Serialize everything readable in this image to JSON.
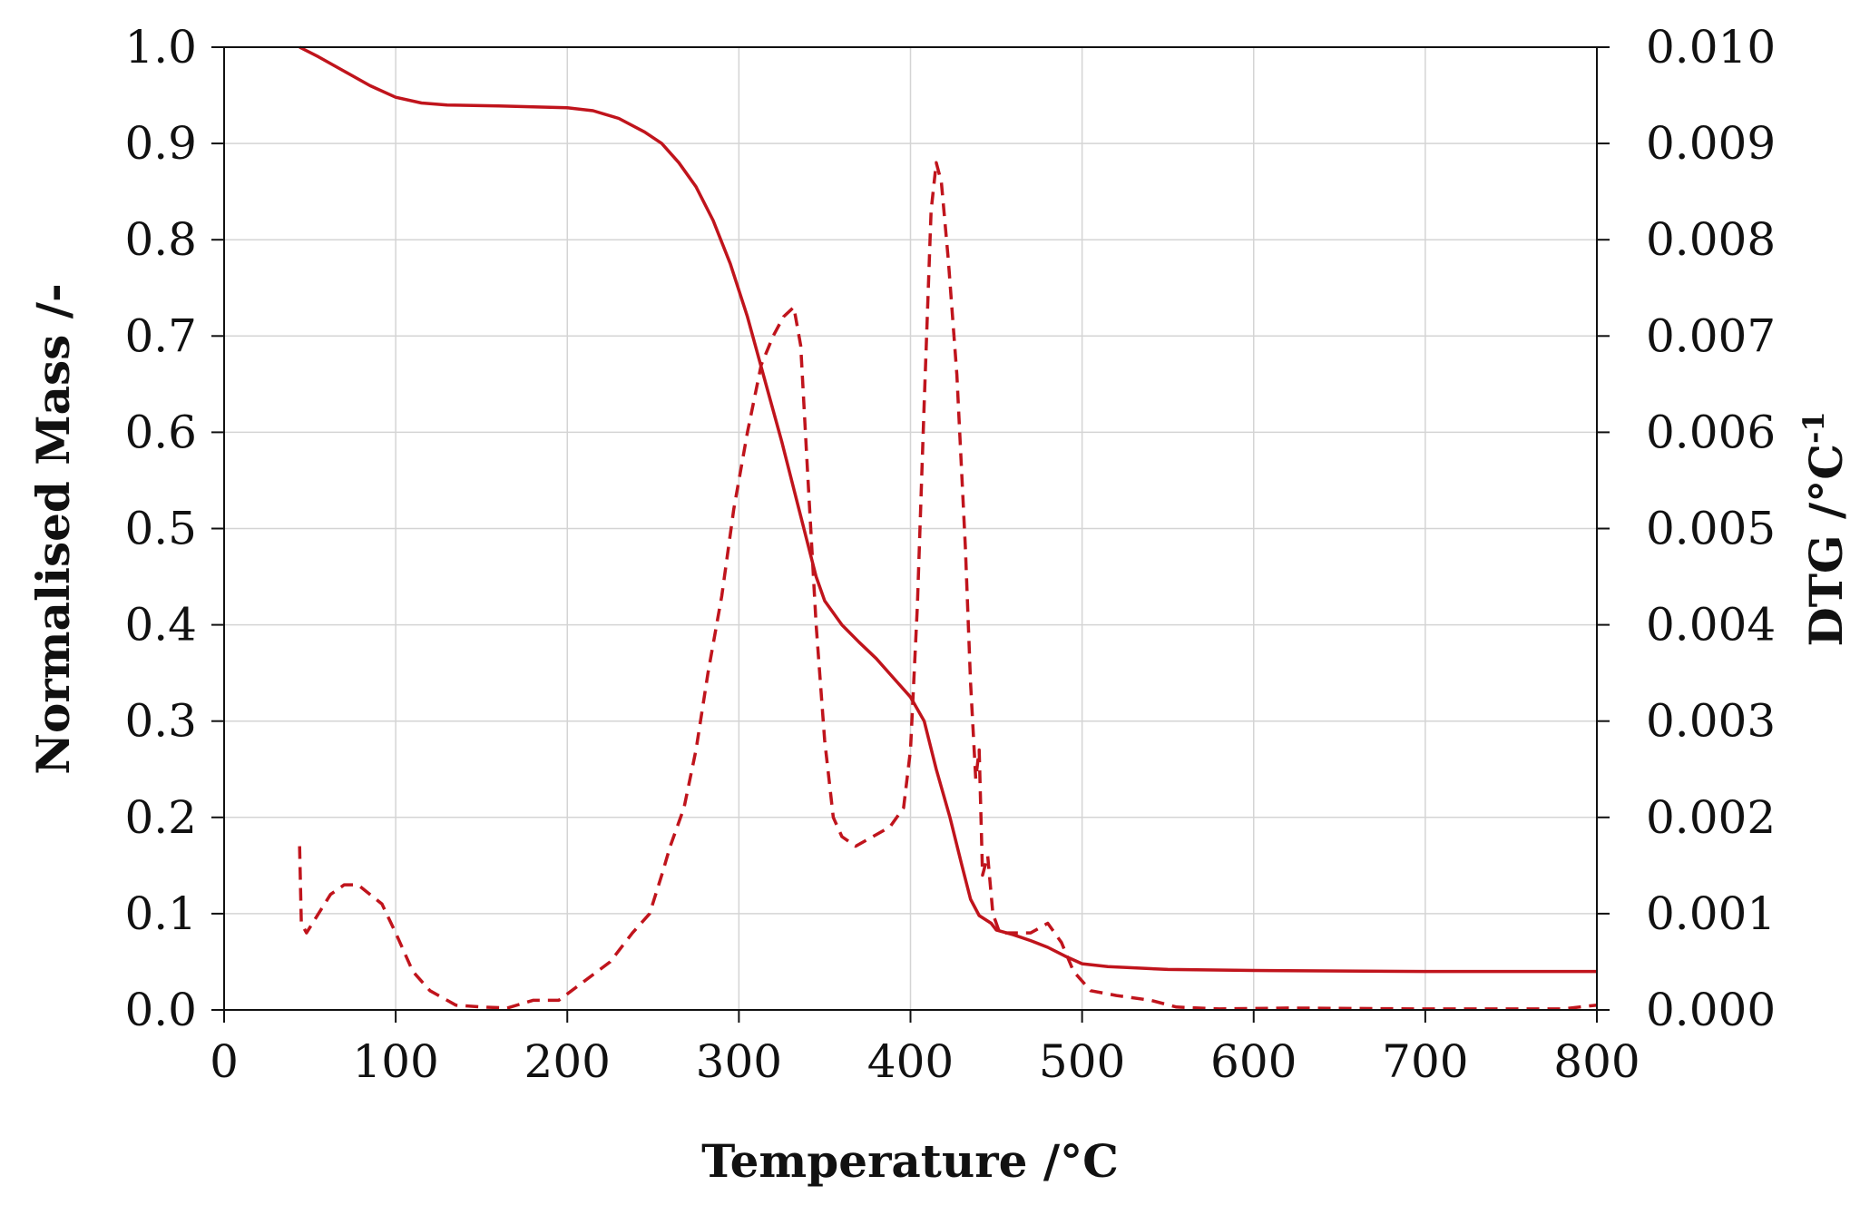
{
  "chart_data": {
    "type": "line",
    "xlabel": "Temperature /°C",
    "ylabel": "Normalised Mass /-",
    "y2label": "DTG  /°C",
    "y2label_superscript": "-1",
    "xlim": [
      0,
      800
    ],
    "ylim": [
      0,
      1.0
    ],
    "y2lim": [
      0,
      0.01
    ],
    "x_ticks": [
      "0",
      "100",
      "200",
      "300",
      "400",
      "500",
      "600",
      "700",
      "800"
    ],
    "y_ticks": [
      "0.0",
      "0.1",
      "0.2",
      "0.3",
      "0.4",
      "0.5",
      "0.6",
      "0.7",
      "0.8",
      "0.9",
      "1.0"
    ],
    "y2_ticks": [
      "0.000",
      "0.001",
      "0.002",
      "0.003",
      "0.004",
      "0.005",
      "0.006",
      "0.007",
      "0.008",
      "0.009",
      "0.010"
    ],
    "grid": true,
    "color": "#c0141c",
    "series": [
      {
        "axis": "left",
        "style": "solid",
        "points": [
          [
            44,
            1.0
          ],
          [
            55,
            0.99
          ],
          [
            70,
            0.975
          ],
          [
            85,
            0.96
          ],
          [
            100,
            0.948
          ],
          [
            115,
            0.942
          ],
          [
            130,
            0.94
          ],
          [
            160,
            0.939
          ],
          [
            200,
            0.937
          ],
          [
            215,
            0.934
          ],
          [
            230,
            0.926
          ],
          [
            245,
            0.912
          ],
          [
            255,
            0.9
          ],
          [
            265,
            0.88
          ],
          [
            275,
            0.855
          ],
          [
            285,
            0.82
          ],
          [
            295,
            0.775
          ],
          [
            305,
            0.72
          ],
          [
            315,
            0.655
          ],
          [
            325,
            0.59
          ],
          [
            335,
            0.52
          ],
          [
            345,
            0.45
          ],
          [
            350,
            0.425
          ],
          [
            360,
            0.4
          ],
          [
            370,
            0.382
          ],
          [
            380,
            0.365
          ],
          [
            390,
            0.345
          ],
          [
            400,
            0.325
          ],
          [
            408,
            0.3
          ],
          [
            415,
            0.25
          ],
          [
            423,
            0.2
          ],
          [
            430,
            0.15
          ],
          [
            435,
            0.115
          ],
          [
            440,
            0.098
          ],
          [
            447,
            0.09
          ],
          [
            450,
            0.083
          ],
          [
            460,
            0.078
          ],
          [
            470,
            0.072
          ],
          [
            480,
            0.065
          ],
          [
            490,
            0.056
          ],
          [
            500,
            0.048
          ],
          [
            515,
            0.045
          ],
          [
            550,
            0.042
          ],
          [
            600,
            0.041
          ],
          [
            700,
            0.04
          ],
          [
            800,
            0.04
          ]
        ]
      },
      {
        "axis": "right",
        "style": "dashed",
        "points": [
          [
            44,
            0.0017
          ],
          [
            45,
            0.0009
          ],
          [
            48,
            0.0008
          ],
          [
            55,
            0.001
          ],
          [
            62,
            0.0012
          ],
          [
            70,
            0.0013
          ],
          [
            78,
            0.0013
          ],
          [
            85,
            0.0012
          ],
          [
            92,
            0.0011
          ],
          [
            100,
            0.0008
          ],
          [
            110,
            0.0004
          ],
          [
            120,
            0.0002
          ],
          [
            135,
            5e-05
          ],
          [
            150,
            3e-05
          ],
          [
            165,
            2e-05
          ],
          [
            180,
            0.0001
          ],
          [
            195,
            0.0001
          ],
          [
            210,
            0.0003
          ],
          [
            225,
            0.0005
          ],
          [
            238,
            0.0008
          ],
          [
            248,
            0.001
          ],
          [
            255,
            0.0014
          ],
          [
            260,
            0.0017
          ],
          [
            268,
            0.0021
          ],
          [
            275,
            0.0027
          ],
          [
            282,
            0.0035
          ],
          [
            290,
            0.0043
          ],
          [
            297,
            0.0052
          ],
          [
            305,
            0.006
          ],
          [
            313,
            0.0067
          ],
          [
            320,
            0.007
          ],
          [
            326,
            0.0072
          ],
          [
            332,
            0.0073
          ],
          [
            336,
            0.0069
          ],
          [
            340,
            0.0056
          ],
          [
            345,
            0.004
          ],
          [
            350,
            0.0028
          ],
          [
            355,
            0.002
          ],
          [
            360,
            0.0018
          ],
          [
            368,
            0.0017
          ],
          [
            378,
            0.0018
          ],
          [
            388,
            0.0019
          ],
          [
            396,
            0.0021
          ],
          [
            400,
            0.0027
          ],
          [
            404,
            0.0042
          ],
          [
            408,
            0.0063
          ],
          [
            412,
            0.0083
          ],
          [
            415,
            0.0088
          ],
          [
            418,
            0.0086
          ],
          [
            422,
            0.0078
          ],
          [
            427,
            0.0066
          ],
          [
            432,
            0.0048
          ],
          [
            435,
            0.0034
          ],
          [
            438,
            0.0024
          ],
          [
            440,
            0.0027
          ],
          [
            442,
            0.0014
          ],
          [
            445,
            0.0016
          ],
          [
            448,
            0.001
          ],
          [
            452,
            0.0008
          ],
          [
            460,
            0.0008
          ],
          [
            470,
            0.0008
          ],
          [
            480,
            0.0009
          ],
          [
            488,
            0.0007
          ],
          [
            495,
            0.0004
          ],
          [
            505,
            0.0002
          ],
          [
            520,
            0.00015
          ],
          [
            540,
            0.0001
          ],
          [
            555,
            3e-05
          ],
          [
            580,
            1e-05
          ],
          [
            620,
            2e-05
          ],
          [
            700,
            1e-05
          ],
          [
            780,
            1e-05
          ],
          [
            800,
            5e-05
          ]
        ]
      }
    ]
  }
}
